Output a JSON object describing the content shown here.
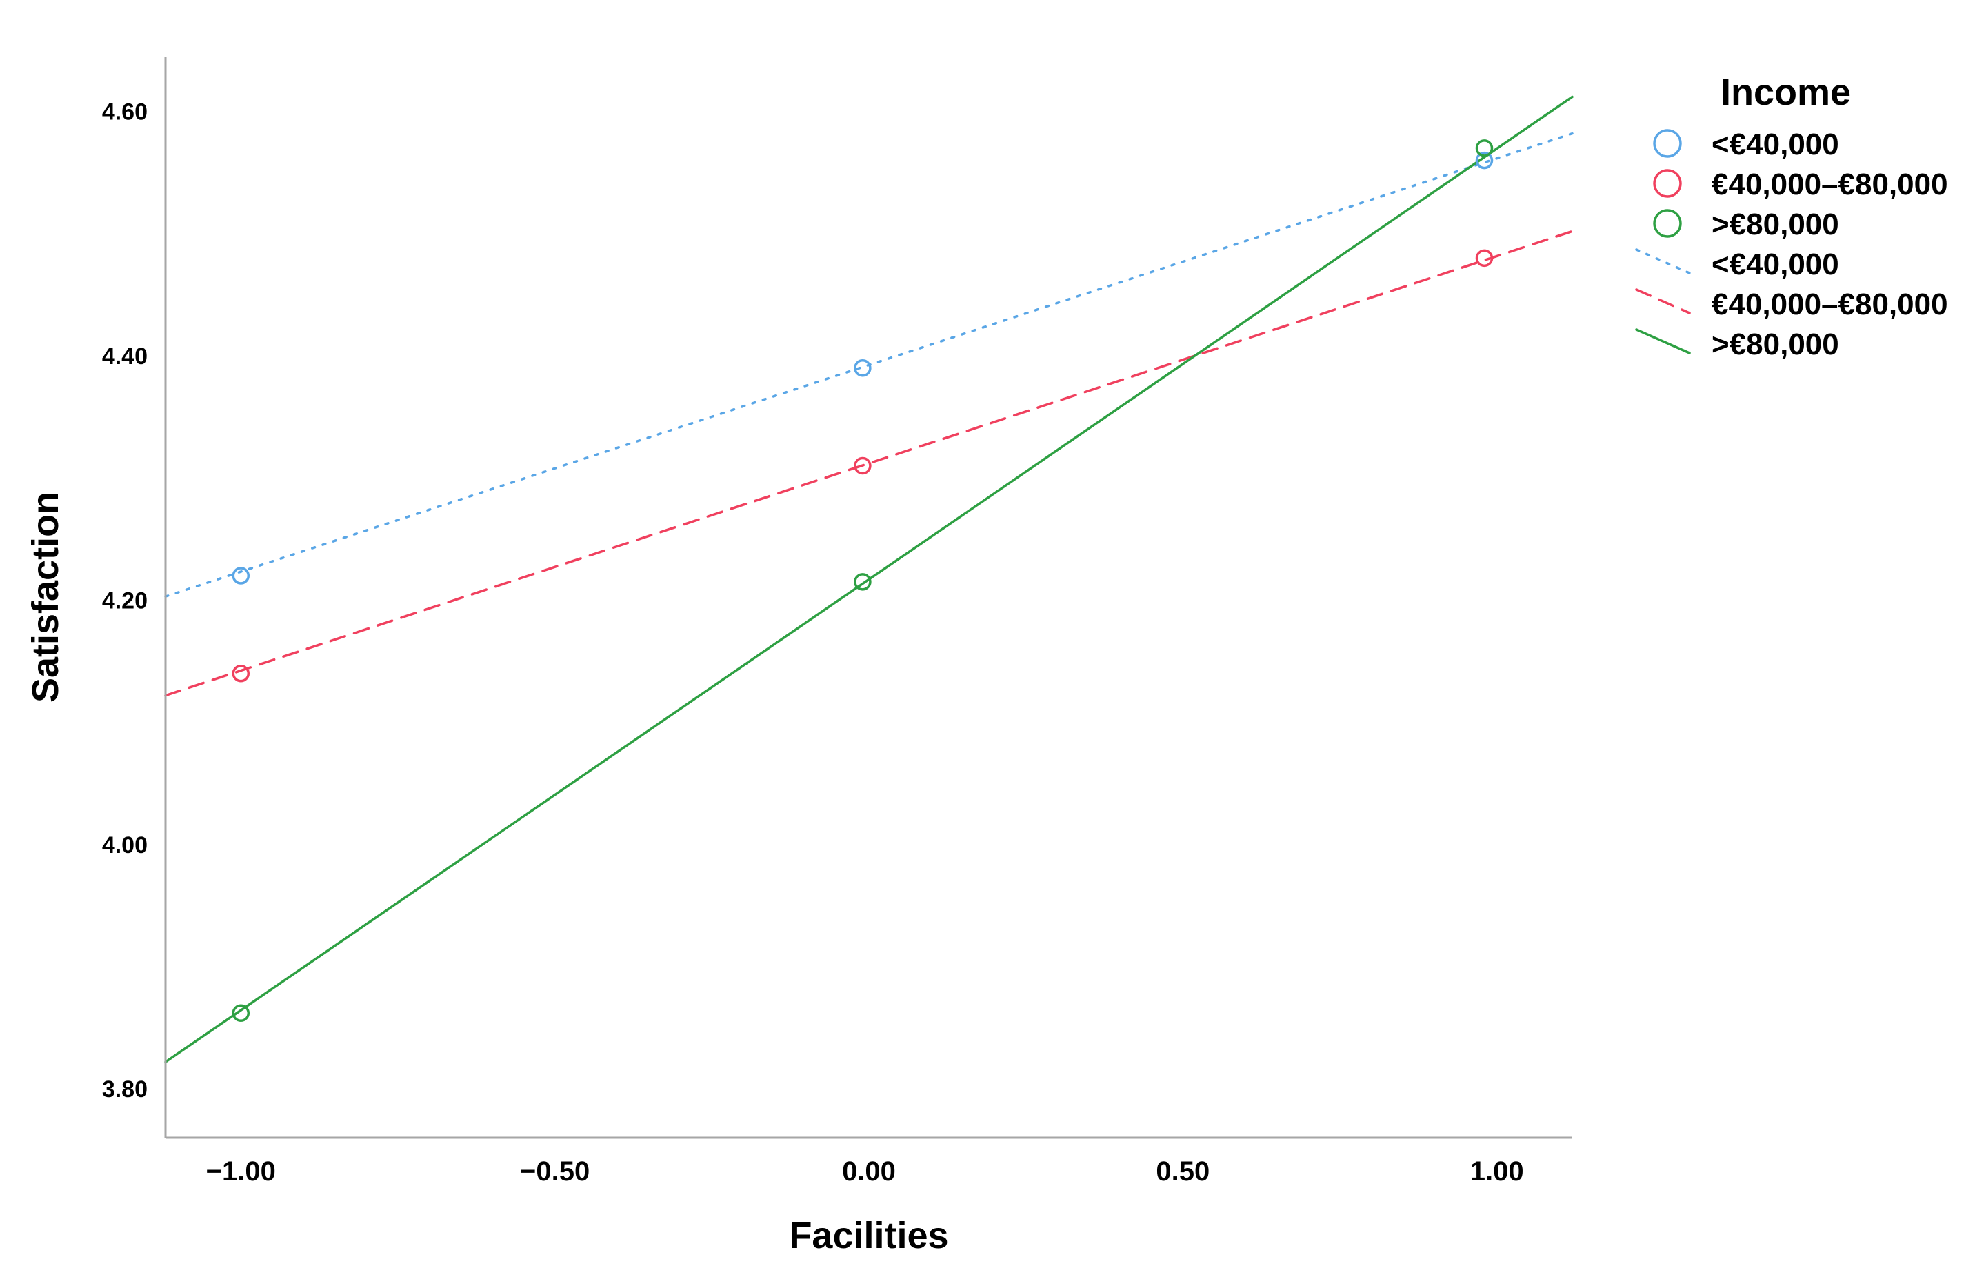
{
  "chart_data": {
    "type": "scatter",
    "title": "",
    "xlabel": "Facilities",
    "ylabel": "Satisfaction",
    "xlim": [
      -1.12,
      1.12
    ],
    "ylim": [
      3.76,
      4.645
    ],
    "x_ticks": [
      -1.0,
      -0.5,
      0.0,
      0.5,
      1.0
    ],
    "x_tick_labels": [
      "−1.00",
      "−0.50",
      "0.00",
      "0.50",
      "1.00"
    ],
    "y_ticks": [
      3.8,
      4.0,
      4.2,
      4.4,
      4.6
    ],
    "y_tick_labels": [
      "3.80",
      "4.00",
      "4.20",
      "4.40",
      "4.60"
    ],
    "grid": false,
    "legend": {
      "title": "Income",
      "placement": "right"
    },
    "series": [
      {
        "name": "<€40,000",
        "color": "#5aa6e6",
        "line_style": "dotted",
        "x": [
          -1.0,
          -0.01,
          0.98
        ],
        "y": [
          4.22,
          4.39,
          4.56
        ],
        "fit_line": {
          "x": [
            -1.12,
            1.12
          ],
          "y": [
            4.203,
            4.582
          ]
        }
      },
      {
        "name": "€40,000–€80,000",
        "color": "#f0405e",
        "line_style": "dashed",
        "x": [
          -1.0,
          -0.01,
          0.98
        ],
        "y": [
          4.14,
          4.31,
          4.48
        ],
        "fit_line": {
          "x": [
            -1.12,
            1.12
          ],
          "y": [
            4.122,
            4.502
          ]
        }
      },
      {
        "name": ">€80,000",
        "color": "#2ea043",
        "line_style": "solid",
        "x": [
          -1.0,
          -0.01,
          0.98
        ],
        "y": [
          3.862,
          4.215,
          4.57
        ],
        "fit_line": {
          "x": [
            -1.12,
            1.12
          ],
          "y": [
            3.822,
            4.612
          ]
        }
      }
    ]
  }
}
